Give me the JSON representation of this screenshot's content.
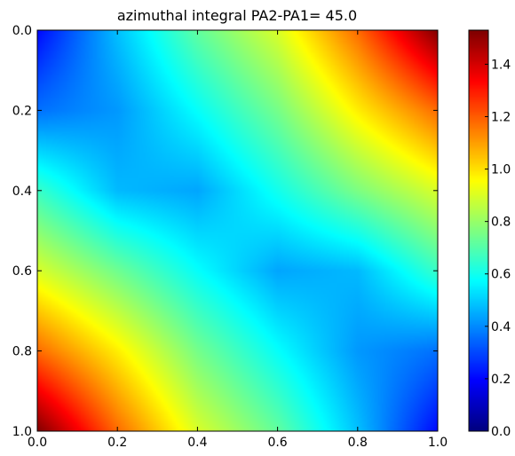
{
  "chart_data": {
    "type": "heatmap",
    "title": "azimuthal integral PA2-PA1= 45.0",
    "xlabel": "",
    "ylabel": "",
    "xlim": [
      0.0,
      1.0
    ],
    "ylim": [
      1.0,
      0.0
    ],
    "x_ticks": [
      0.0,
      0.2,
      0.4,
      0.6,
      0.8,
      1.0
    ],
    "y_ticks": [
      0.0,
      0.2,
      0.4,
      0.6,
      0.8,
      1.0
    ],
    "x_tick_labels": [
      "0.0",
      "0.2",
      "0.4",
      "0.6",
      "0.8",
      "1.0"
    ],
    "y_tick_labels": [
      "0.0",
      "0.2",
      "0.4",
      "0.6",
      "0.8",
      "1.0"
    ],
    "colormap": "jet",
    "vmin": 0.0,
    "vmax": 1.53,
    "colorbar_ticks": [
      0.0,
      0.2,
      0.4,
      0.6,
      0.8,
      1.0,
      1.2,
      1.4
    ],
    "colorbar_tick_labels": [
      "0.0",
      "0.2",
      "0.4",
      "0.6",
      "0.8",
      "1.0",
      "1.2",
      "1.4"
    ],
    "grid": false,
    "colorbar_position": "right",
    "y_axis_direction": "inverted",
    "x": [
      0.0,
      0.2,
      0.4,
      0.6,
      0.8,
      1.0
    ],
    "y": [
      0.0,
      0.2,
      0.4,
      0.6,
      0.8,
      1.0
    ],
    "z": [
      [
        0.2,
        0.48,
        0.72,
        0.9,
        1.18,
        1.53
      ],
      [
        0.36,
        0.42,
        0.58,
        0.75,
        0.98,
        1.18
      ],
      [
        0.66,
        0.47,
        0.44,
        0.6,
        0.76,
        0.9
      ],
      [
        0.9,
        0.74,
        0.58,
        0.44,
        0.47,
        0.66
      ],
      [
        1.18,
        0.98,
        0.75,
        0.58,
        0.42,
        0.36
      ],
      [
        1.53,
        1.18,
        0.9,
        0.72,
        0.48,
        0.2
      ]
    ]
  }
}
